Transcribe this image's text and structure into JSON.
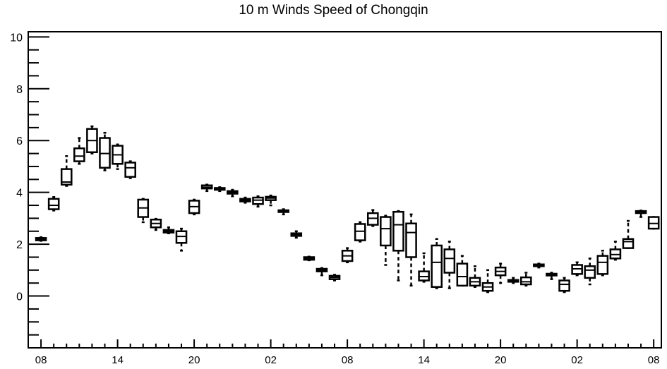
{
  "chart_data": {
    "type": "box",
    "title": "10 m Winds Speed of Chongqin",
    "xlabel": "",
    "ylabel": "",
    "ylim": [
      -2,
      10.2
    ],
    "yticks": [
      0,
      2,
      4,
      6,
      8,
      10
    ],
    "xtick_labels": [
      "08",
      "14",
      "20",
      "02",
      "08",
      "14",
      "20",
      "02",
      "08"
    ],
    "xtick_steps": [
      0,
      6,
      12,
      18,
      24,
      30,
      36,
      42,
      48
    ],
    "step_range": [
      -1,
      48.6
    ],
    "colors": {
      "frame": "#000000",
      "box_fill": "#ffffff"
    },
    "boxes": [
      {
        "step": 0,
        "min": 2.13,
        "q1": 2.15,
        "median": 2.2,
        "q3": 2.24,
        "max": 2.27
      },
      {
        "step": 1,
        "min": 3.3,
        "q1": 3.35,
        "median": 3.5,
        "q3": 3.75,
        "max": 3.82
      },
      {
        "step": 2,
        "min": 4.25,
        "q1": 4.3,
        "median": 4.4,
        "q3": 4.9,
        "max": 5.4
      },
      {
        "step": 3,
        "min": 5.1,
        "q1": 5.2,
        "median": 5.4,
        "q3": 5.7,
        "max": 6.1
      },
      {
        "step": 4,
        "min": 5.5,
        "q1": 5.55,
        "median": 6.0,
        "q3": 6.45,
        "max": 6.55
      },
      {
        "step": 5,
        "min": 4.85,
        "q1": 4.95,
        "median": 5.5,
        "q3": 6.1,
        "max": 6.3
      },
      {
        "step": 6,
        "min": 4.9,
        "q1": 5.1,
        "median": 5.45,
        "q3": 5.8,
        "max": 5.85
      },
      {
        "step": 7,
        "min": 4.55,
        "q1": 4.6,
        "median": 4.95,
        "q3": 5.15,
        "max": 5.2
      },
      {
        "step": 8,
        "min": 2.85,
        "q1": 3.05,
        "median": 3.4,
        "q3": 3.72,
        "max": 3.75
      },
      {
        "step": 9,
        "min": 2.55,
        "q1": 2.65,
        "median": 2.8,
        "q3": 2.95,
        "max": 2.98
      },
      {
        "step": 10,
        "min": 2.42,
        "q1": 2.45,
        "median": 2.5,
        "q3": 2.55,
        "max": 2.65
      },
      {
        "step": 11,
        "min": 1.75,
        "q1": 2.05,
        "median": 2.3,
        "q3": 2.5,
        "max": 2.6
      },
      {
        "step": 12,
        "min": 3.15,
        "q1": 3.2,
        "median": 3.45,
        "q3": 3.68,
        "max": 3.72
      },
      {
        "step": 13,
        "min": 4.05,
        "q1": 4.15,
        "median": 4.2,
        "q3": 4.27,
        "max": 4.3
      },
      {
        "step": 14,
        "min": 4.05,
        "q1": 4.1,
        "median": 4.13,
        "q3": 4.17,
        "max": 4.2
      },
      {
        "step": 15,
        "min": 3.85,
        "q1": 3.95,
        "median": 4.0,
        "q3": 4.05,
        "max": 4.1
      },
      {
        "step": 16,
        "min": 3.6,
        "q1": 3.65,
        "median": 3.7,
        "q3": 3.75,
        "max": 3.8
      },
      {
        "step": 17,
        "min": 3.45,
        "q1": 3.55,
        "median": 3.7,
        "q3": 3.8,
        "max": 3.85
      },
      {
        "step": 18,
        "min": 3.5,
        "q1": 3.7,
        "median": 3.78,
        "q3": 3.83,
        "max": 3.88
      },
      {
        "step": 19,
        "min": 3.15,
        "q1": 3.25,
        "median": 3.28,
        "q3": 3.31,
        "max": 3.35
      },
      {
        "step": 20,
        "min": 2.25,
        "q1": 2.32,
        "median": 2.37,
        "q3": 2.42,
        "max": 2.5
      },
      {
        "step": 21,
        "min": 1.38,
        "q1": 1.4,
        "median": 1.45,
        "q3": 1.5,
        "max": 1.52
      },
      {
        "step": 22,
        "min": 0.8,
        "q1": 0.95,
        "median": 1.0,
        "q3": 1.05,
        "max": 1.08
      },
      {
        "step": 23,
        "min": 0.6,
        "q1": 0.65,
        "median": 0.72,
        "q3": 0.78,
        "max": 0.82
      },
      {
        "step": 24,
        "min": 1.3,
        "q1": 1.35,
        "median": 1.55,
        "q3": 1.75,
        "max": 1.85
      },
      {
        "step": 25,
        "min": 2.1,
        "q1": 2.15,
        "median": 2.5,
        "q3": 2.78,
        "max": 2.85
      },
      {
        "step": 26,
        "min": 2.7,
        "q1": 2.75,
        "median": 3.0,
        "q3": 3.2,
        "max": 3.32
      },
      {
        "step": 27,
        "min": 1.2,
        "q1": 1.95,
        "median": 2.6,
        "q3": 3.05,
        "max": 3.1
      },
      {
        "step": 28,
        "min": 0.6,
        "q1": 1.75,
        "median": 2.75,
        "q3": 3.25,
        "max": 3.28
      },
      {
        "step": 29,
        "min": 0.4,
        "q1": 1.5,
        "median": 2.45,
        "q3": 2.8,
        "max": 3.15
      },
      {
        "step": 30,
        "min": 0.55,
        "q1": 0.6,
        "median": 0.75,
        "q3": 0.95,
        "max": 1.65
      },
      {
        "step": 31,
        "min": 0.3,
        "q1": 0.35,
        "median": 1.3,
        "q3": 1.95,
        "max": 2.2
      },
      {
        "step": 32,
        "min": 0.3,
        "q1": 0.9,
        "median": 1.45,
        "q3": 1.8,
        "max": 2.1
      },
      {
        "step": 33,
        "min": 0.4,
        "q1": 0.4,
        "median": 0.75,
        "q3": 1.25,
        "max": 1.55
      },
      {
        "step": 34,
        "min": 0.35,
        "q1": 0.4,
        "median": 0.55,
        "q3": 0.7,
        "max": 1.15
      },
      {
        "step": 35,
        "min": 0.15,
        "q1": 0.2,
        "median": 0.35,
        "q3": 0.5,
        "max": 1.0
      },
      {
        "step": 36,
        "min": 0.5,
        "q1": 0.8,
        "median": 0.95,
        "q3": 1.1,
        "max": 1.25
      },
      {
        "step": 37,
        "min": 0.5,
        "q1": 0.55,
        "median": 0.6,
        "q3": 0.62,
        "max": 0.7
      },
      {
        "step": 38,
        "min": 0.4,
        "q1": 0.45,
        "median": 0.55,
        "q3": 0.72,
        "max": 0.9
      },
      {
        "step": 39,
        "min": 1.1,
        "q1": 1.15,
        "median": 1.2,
        "q3": 1.22,
        "max": 1.25
      },
      {
        "step": 40,
        "min": 0.65,
        "q1": 0.8,
        "median": 0.83,
        "q3": 0.86,
        "max": 0.9
      },
      {
        "step": 41,
        "min": 0.15,
        "q1": 0.2,
        "median": 0.45,
        "q3": 0.6,
        "max": 0.7
      },
      {
        "step": 42,
        "min": 0.8,
        "q1": 0.85,
        "median": 1.05,
        "q3": 1.2,
        "max": 1.3
      },
      {
        "step": 43,
        "min": 0.45,
        "q1": 0.7,
        "median": 1.0,
        "q3": 1.15,
        "max": 1.45
      },
      {
        "step": 44,
        "min": 0.8,
        "q1": 0.85,
        "median": 1.3,
        "q3": 1.55,
        "max": 1.75
      },
      {
        "step": 45,
        "min": 1.4,
        "q1": 1.45,
        "median": 1.6,
        "q3": 1.8,
        "max": 2.1
      },
      {
        "step": 46,
        "min": 1.85,
        "q1": 1.85,
        "median": 2.1,
        "q3": 2.2,
        "max": 2.9
      },
      {
        "step": 47,
        "min": 3.05,
        "q1": 3.2,
        "median": 3.25,
        "q3": 3.28,
        "max": 3.3
      },
      {
        "step": 48,
        "min": 2.6,
        "q1": 2.6,
        "median": 2.8,
        "q3": 3.05,
        "max": 3.05
      }
    ]
  }
}
